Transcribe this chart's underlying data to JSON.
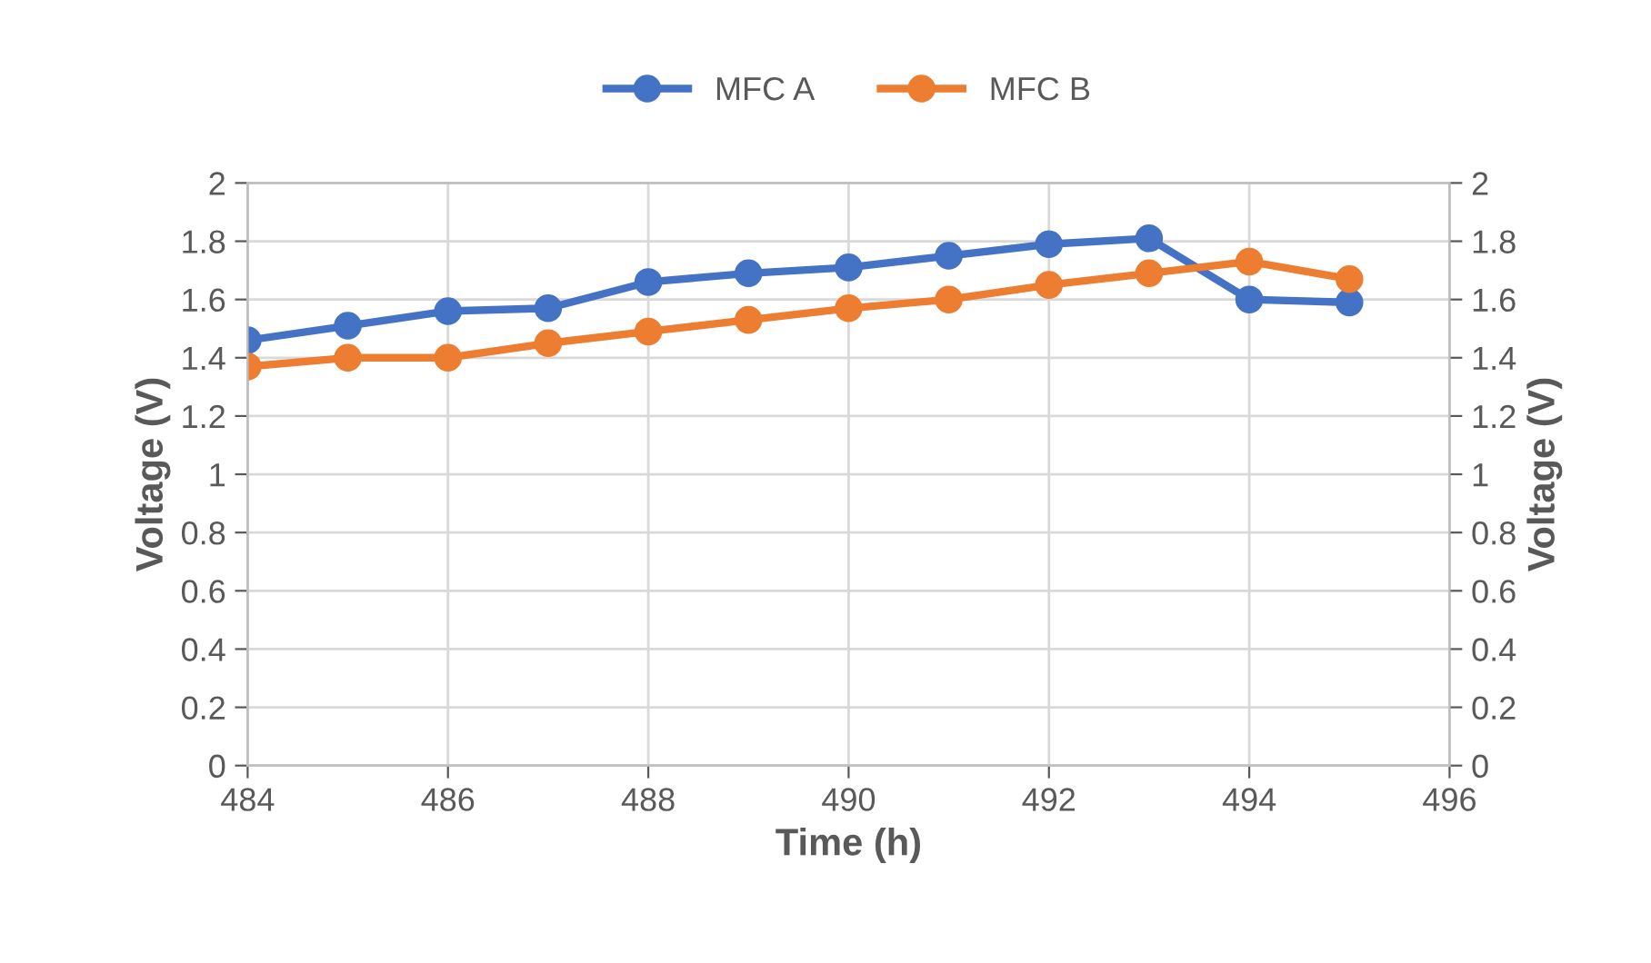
{
  "chart_data": {
    "type": "line",
    "xlabel": "Time (h)",
    "ylabel": "Voltage (V)",
    "y2label": "Voltage (V)",
    "x": [
      484,
      485,
      486,
      487,
      488,
      489,
      490,
      491,
      492,
      493,
      494,
      495
    ],
    "series": [
      {
        "name": "MFC A",
        "color": "#4472c4",
        "values": [
          1.46,
          1.51,
          1.56,
          1.57,
          1.66,
          1.69,
          1.71,
          1.75,
          1.79,
          1.81,
          1.6,
          1.59
        ]
      },
      {
        "name": "MFC B",
        "color": "#ed7d31",
        "values": [
          1.37,
          1.4,
          1.4,
          1.45,
          1.49,
          1.53,
          1.57,
          1.6,
          1.65,
          1.69,
          1.73,
          1.67
        ]
      }
    ],
    "xlim": [
      484,
      496
    ],
    "xticks": [
      484,
      486,
      488,
      490,
      492,
      494,
      496
    ],
    "ylim": [
      0,
      2
    ],
    "yticks": [
      0,
      0.2,
      0.4,
      0.6,
      0.8,
      1,
      1.2,
      1.4,
      1.6,
      1.8,
      2
    ],
    "y2lim": [
      0,
      2
    ],
    "y2ticks": [
      0,
      0.2,
      0.4,
      0.6,
      0.8,
      1,
      1.2,
      1.4,
      1.6,
      1.8,
      2
    ],
    "grid": true,
    "legend": "top",
    "marker": "circle",
    "line_style": "solid"
  }
}
